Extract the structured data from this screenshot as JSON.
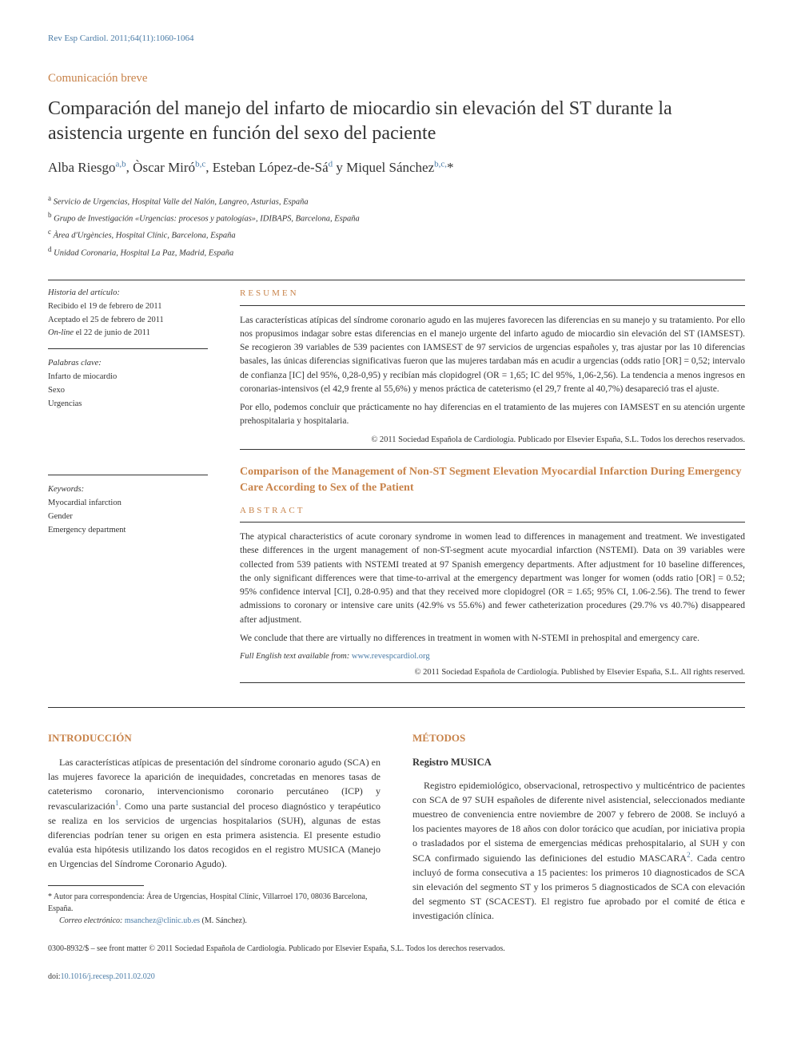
{
  "journal_ref": "Rev Esp Cardiol. 2011;64(11):1060-1064",
  "article_type": "Comunicación breve",
  "title": "Comparación del manejo del infarto de miocardio sin elevación del ST durante la asistencia urgente en función del sexo del paciente",
  "authors_html": "Alba Riesgo<sup>a,b</sup>, Òscar Miró<sup>b,c</sup>, Esteban López-de-Sá<sup>d</sup> y Miquel Sánchez<sup>b,c,</sup>*",
  "affiliations": [
    {
      "sup": "a",
      "text": "Servicio de Urgencias, Hospital Valle del Nalón, Langreo, Asturias, España"
    },
    {
      "sup": "b",
      "text": "Grupo de Investigación «Urgencias: procesos y patologías», IDIBAPS, Barcelona, España"
    },
    {
      "sup": "c",
      "text": "Àrea d'Urgències, Hospital Clínic, Barcelona, España"
    },
    {
      "sup": "d",
      "text": "Unidad Coronaria, Hospital La Paz, Madrid, España"
    }
  ],
  "history": {
    "head": "Historia del artículo:",
    "received": "Recibido el 19 de febrero de 2011",
    "accepted": "Aceptado el 25 de febrero de 2011",
    "online_label": "On-line",
    "online_rest": " el 22 de junio de 2011"
  },
  "palabras_head": "Palabras clave:",
  "palabras": [
    "Infarto de miocardio",
    "Sexo",
    "Urgencias"
  ],
  "keywords_head": "Keywords:",
  "keywords": [
    "Myocardial infarction",
    "Gender",
    "Emergency department"
  ],
  "resumen_label": "RESUMEN",
  "resumen_p1": "Las características atípicas del síndrome coronario agudo en las mujeres favorecen las diferencias en su manejo y su tratamiento. Por ello nos propusimos indagar sobre estas diferencias en el manejo urgente del infarto agudo de miocardio sin elevación del ST (IAMSEST). Se recogieron 39 variables de 539 pacientes con IAMSEST de 97 servicios de urgencias españoles y, tras ajustar por las 10 diferencias basales, las únicas diferencias significativas fueron que las mujeres tardaban más en acudir a urgencias (odds ratio [OR] = 0,52; intervalo de confianza [IC] del 95%, 0,28-0,95) y recibían más clopidogrel (OR = 1,65; IC del 95%, 1,06-2,56). La tendencia a menos ingresos en coronarias-intensivos (el 42,9 frente al 55,6%) y menos práctica de cateterismo (el 29,7 frente al 40,7%) desapareció tras el ajuste.",
  "resumen_p2": "Por ello, podemos concluir que prácticamente no hay diferencias en el tratamiento de las mujeres con IAMSEST en su atención urgente prehospitalaria y hospitalaria.",
  "resumen_copy": "© 2011 Sociedad Española de Cardiología. Publicado por Elsevier España, S.L. Todos los derechos reservados.",
  "english_title": "Comparison of the Management of Non-ST Segment Elevation Myocardial Infarction During Emergency Care According to Sex of the Patient",
  "abstract_label": "ABSTRACT",
  "abstract_p1": "The atypical characteristics of acute coronary syndrome in women lead to differences in management and treatment. We investigated these differences in the urgent management of non-ST-segment acute myocardial infarction (NSTEMI). Data on 39 variables were collected from 539 patients with NSTEMI treated at 97 Spanish emergency departments. After adjustment for 10 baseline differences, the only significant differences were that time-to-arrival at the emergency department was longer for women (odds ratio [OR] = 0.52; 95% confidence interval [CI], 0.28-0.95) and that they received more clopidogrel (OR = 1.65; 95% CI, 1.06-2.56). The trend to fewer admissions to coronary or intensive care units (42.9% vs 55.6%) and fewer catheterization procedures (29.7% vs 40.7%) disappeared after adjustment.",
  "abstract_p2": "We conclude that there are virtually no differences in treatment in women with N-STEMI in prehospital and emergency care.",
  "fulltext_label": "Full English text available from",
  "fulltext_url": "www.revespcardiol.org",
  "abstract_copy": "© 2011 Sociedad Española de Cardiología. Published by Elsevier España, S.L. All rights reserved.",
  "intro_head": "INTRODUCCIÓN",
  "intro_text_html": "Las características atípicas de presentación del síndrome coronario agudo (SCA) en las mujeres favorece la aparición de inequidades, concretadas en menores tasas de cateterismo coronario, intervencionismo coronario percutáneo (ICP) y revascularización<sup>1</sup>. Como una parte sustancial del proceso diagnóstico y terapéutico se realiza en los servicios de urgencias hospitalarios (SUH), algunas de estas diferencias podrían tener su origen en esta primera asistencia. El presente estudio evalúa esta hipótesis utilizando los datos recogidos en el registro MUSICA (Manejo en Urgencias del Síndrome Coronario Agudo).",
  "methods_head": "MÉTODOS",
  "methods_sub": "Registro MUSICA",
  "methods_text_html": "Registro epidemiológico, observacional, retrospectivo y multicéntrico de pacientes con SCA de 97 SUH españoles de diferente nivel asistencial, seleccionados mediante muestreo de conveniencia entre noviembre de 2007 y febrero de 2008. Se incluyó a los pacientes mayores de 18 años con dolor torácico que acudían, por iniciativa propia o trasladados por el sistema de emergencias médicas prehospitalario, al SUH y con SCA confirmado siguiendo las definiciones del estudio MASCARA<sup>2</sup>. Cada centro incluyó de forma consecutiva a 15 pacientes: los primeros 10 diagnosticados de SCA sin elevación del segmento ST y los primeros 5 diagnosticados de SCA con elevación del segmento ST (SCACEST). El registro fue aprobado por el comité de ética e investigación clínica.",
  "corr_label": "* Autor para correspondencia: Área de Urgencias, Hospital Clínic, Villarroel 170, 08036 Barcelona, España.",
  "corr_email_label": "Correo electrónico:",
  "corr_email": "msanchez@clinic.ub.es",
  "corr_name": "(M. Sánchez).",
  "footer_issn": "0300-8932/$ – see front matter © 2011 Sociedad Española de Cardiología. Publicado por Elsevier España, S.L. Todos los derechos reservados.",
  "footer_doi_label": "doi:",
  "footer_doi": "10.1016/j.recesp.2011.02.020"
}
